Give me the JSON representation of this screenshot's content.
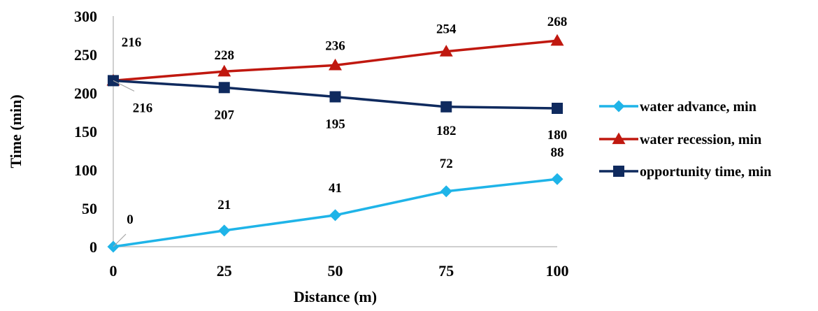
{
  "chart_data": {
    "type": "line",
    "title": "",
    "xlabel": "Distance (m)",
    "ylabel": "Time (min)",
    "x": [
      0,
      25,
      50,
      75,
      100
    ],
    "xlim": [
      0,
      100
    ],
    "ylim": [
      0,
      300
    ],
    "yticks": [
      0,
      50,
      100,
      150,
      200,
      250,
      300
    ],
    "grid": false,
    "legend_position": "right",
    "series": [
      {
        "name": "water advance, min",
        "values": [
          0,
          21,
          41,
          72,
          88
        ],
        "color": "#1fb4e8",
        "marker": "diamond",
        "labels": [
          "0",
          "21",
          "41",
          "72",
          "88"
        ]
      },
      {
        "name": "water recession, min",
        "values": [
          216,
          228,
          236,
          254,
          268
        ],
        "color": "#c0180f",
        "marker": "triangle",
        "labels": [
          "216",
          "228",
          "236",
          "254",
          "268"
        ]
      },
      {
        "name": "opportunity time, min",
        "values": [
          216,
          207,
          195,
          182,
          180
        ],
        "color": "#0f2a5e",
        "marker": "square",
        "labels": [
          "216",
          "207",
          "195",
          "182",
          "180"
        ]
      }
    ]
  }
}
